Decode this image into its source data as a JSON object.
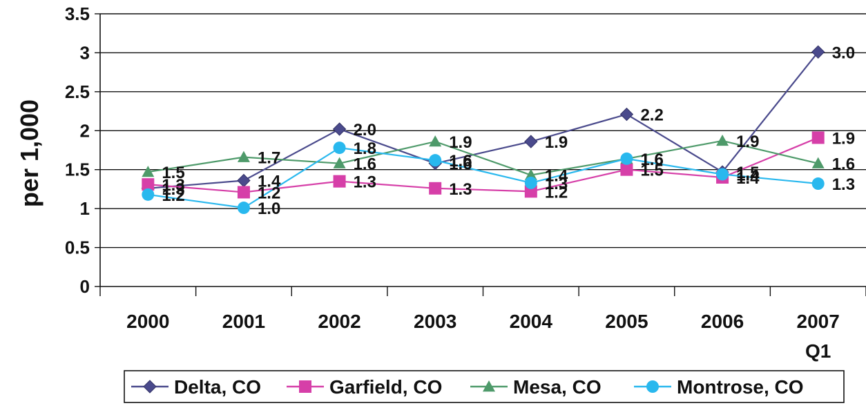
{
  "chart_data": {
    "type": "line",
    "categories": [
      "2000",
      "2001",
      "2002",
      "2003",
      "2004",
      "2005",
      "2006",
      "2007"
    ],
    "category_sublabels": [
      "",
      "",
      "",
      "",
      "",
      "",
      "",
      "Q1"
    ],
    "ylabel": "per 1,000",
    "xlabel": "",
    "title": "",
    "ylim": [
      0,
      3.5
    ],
    "yticks": [
      "0",
      "0.5",
      "1",
      "1.5",
      "2",
      "2.5",
      "3",
      "3.5"
    ],
    "grid": true,
    "legend_position": "bottom",
    "series": [
      {
        "name": "Delta, CO",
        "color": "#4a4a8c",
        "marker": "diamond",
        "values": [
          1.26,
          1.36,
          2.02,
          1.58,
          1.86,
          2.21,
          1.47,
          3.01
        ],
        "labels": [
          "1.3",
          "1.4",
          "2.0",
          "1.6",
          "1.9",
          "2.2",
          "1.5",
          "3.0"
        ]
      },
      {
        "name": "Garfield, CO",
        "color": "#d63fa8",
        "marker": "square",
        "values": [
          1.31,
          1.21,
          1.35,
          1.26,
          1.22,
          1.5,
          1.4,
          1.91
        ],
        "labels": [
          "1.3",
          "1.2",
          "1.3",
          "1.3",
          "1.2",
          "1.5",
          "1.4",
          "1.9"
        ]
      },
      {
        "name": "Mesa, CO",
        "color": "#4e9a6a",
        "marker": "triangle",
        "values": [
          1.47,
          1.66,
          1.58,
          1.86,
          1.43,
          1.64,
          1.87,
          1.58
        ],
        "labels": [
          "1.5",
          "1.7",
          "1.6",
          "1.9",
          "1.4",
          "1.6",
          "1.9",
          "1.6"
        ]
      },
      {
        "name": "Montrose, CO",
        "color": "#29b8ee",
        "marker": "circle",
        "values": [
          1.18,
          1.01,
          1.78,
          1.62,
          1.33,
          1.64,
          1.44,
          1.32
        ],
        "labels": [
          "1.2",
          "1.0",
          "1.8",
          "1.6",
          "1.3",
          "1.6",
          "1.4",
          "1.3"
        ]
      }
    ]
  }
}
